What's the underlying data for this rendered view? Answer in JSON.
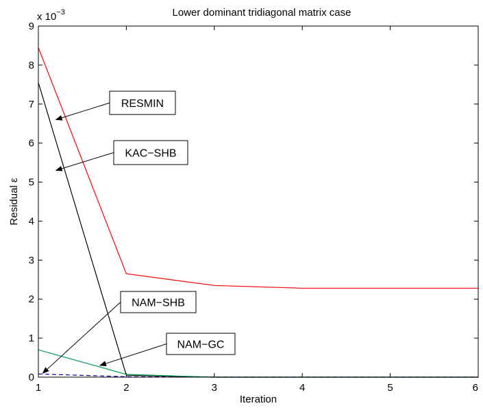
{
  "chart_data": {
    "type": "line",
    "title": "Lower dominant tridiagonal matrix case",
    "xlabel": "Iteration",
    "ylabel": "Residual ε",
    "y_exponent_label": "x 10",
    "y_exponent_power": "−3",
    "xlim": [
      1,
      6
    ],
    "ylim": [
      0,
      9
    ],
    "x_ticks": [
      "1",
      "2",
      "3",
      "4",
      "5",
      "6"
    ],
    "y_ticks": [
      "0",
      "1",
      "2",
      "3",
      "4",
      "5",
      "6",
      "7",
      "8",
      "9"
    ],
    "x": [
      1,
      2,
      3,
      4,
      5,
      6
    ],
    "series": [
      {
        "name": "RESMIN",
        "values": [
          8.45,
          2.65,
          2.35,
          2.28,
          2.28,
          2.28
        ],
        "color": "#ff0000",
        "dash": "none"
      },
      {
        "name": "KAC−SHB",
        "values": [
          7.55,
          0.05,
          0.0,
          0.0,
          0.0,
          0.0
        ],
        "color": "#000000",
        "dash": "none"
      },
      {
        "name": "NAM−GC",
        "values": [
          0.7,
          0.07,
          0.0,
          0.0,
          0.0,
          0.0
        ],
        "color": "#00a050",
        "dash": "none"
      },
      {
        "name": "NAM−SHB",
        "values": [
          0.08,
          0.01,
          0.0,
          0.0,
          0.0,
          0.0
        ],
        "color": "#0000aa",
        "dash": "6,4"
      }
    ],
    "annotations": [
      {
        "text": "RESMIN",
        "target": [
          1.2,
          6.6
        ]
      },
      {
        "text": "KAC−SHB",
        "target": [
          1.2,
          5.3
        ]
      },
      {
        "text": "NAM−SHB",
        "target": [
          1.05,
          0.1
        ]
      },
      {
        "text": "NAM−GC",
        "target": [
          1.7,
          0.3
        ]
      }
    ],
    "grid": false,
    "legend": "none"
  }
}
